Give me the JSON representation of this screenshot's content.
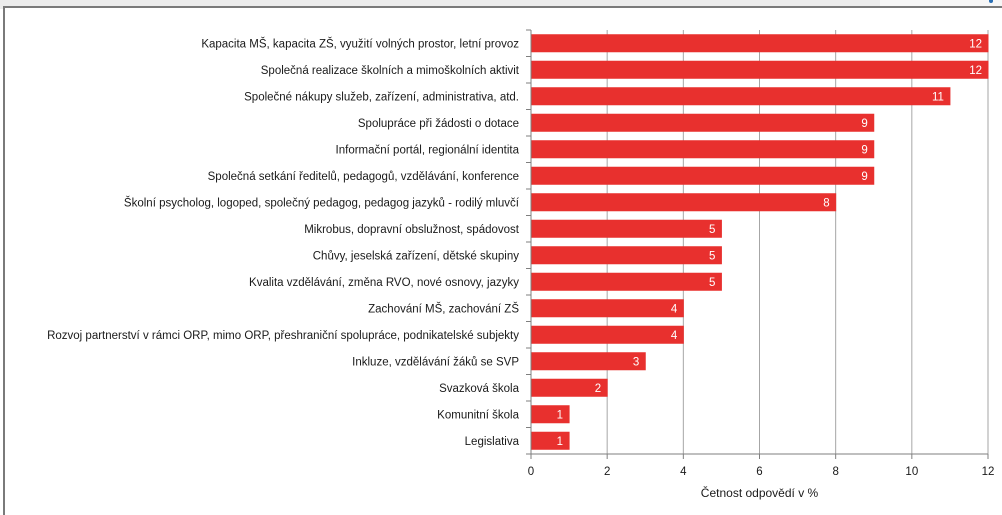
{
  "chart_data": {
    "type": "bar",
    "orientation": "horizontal",
    "categories": [
      "Kapacita MŠ, kapacita ZŠ, využití volných prostor, letní provoz",
      "Společná realizace školních a mimoškolních aktivit",
      "Společné nákupy služeb, zařízení, administrativa, atd.",
      "Spolupráce při žádosti o dotace",
      "Informační portál, regionální identita",
      "Společná setkání ředitelů, pedagogů, vzdělávání, konference",
      "Školní psycholog, logoped, společný pedagog,  pedagog jazyků - rodilý mluvčí",
      "Mikrobus, dopravní obslužnost, spádovost",
      "Chůvy, jeselská zařízení, dětské skupiny",
      "Kvalita vzdělávání, změna RVO, nové osnovy, jazyky",
      "Zachování MŠ, zachování ZŠ",
      "Rozvoj partnerství v rámci ORP, mimo ORP, přeshraniční spolupráce, podnikatelské subjekty",
      "Inkluze, vzdělávání žáků se SVP",
      "Svazková škola",
      "Komunitní škola",
      "Legislativa"
    ],
    "values": [
      12,
      12,
      11,
      9,
      9,
      9,
      8,
      5,
      5,
      5,
      4,
      4,
      3,
      2,
      1,
      1
    ],
    "xlabel": "Četnost odpovědí v %",
    "ylabel": "",
    "xlim": [
      0,
      12
    ],
    "xticks": [
      "0",
      "2",
      "4",
      "6",
      "8",
      "10",
      "12"
    ],
    "grid": true,
    "legend": "none",
    "bar_color": "#e8302e",
    "grid_color": "#a6a6a6",
    "axis_color": "#7f7f7f"
  }
}
